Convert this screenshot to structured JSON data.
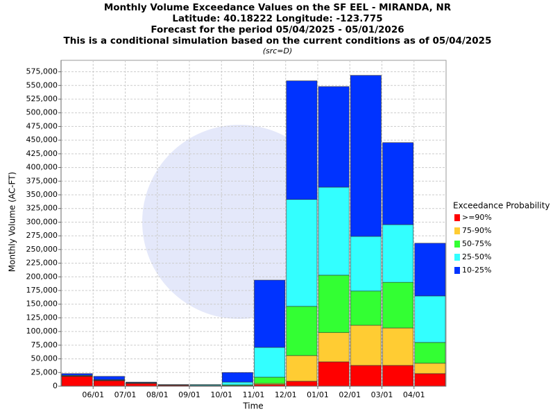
{
  "chart_data": {
    "type": "stacked_bar",
    "title": [
      "Monthly Volume Exceedance Values on the SF EEL - MIRANDA, NR",
      "Latitude: 40.18222 Longitude: -123.775",
      "Forecast for the period 05/04/2025 - 05/01/2026",
      "This is a conditional simulation based on the current conditions as of 05/04/2025"
    ],
    "subtitle": "(src=D)",
    "x_label": "Time",
    "y_label": "Monthly Volume (AC-FT)",
    "legend_title": "Exceedance Probability",
    "legend": "right",
    "grid": true,
    "categories": [
      null,
      "06/01",
      "07/01",
      "08/01",
      "09/01",
      "10/01",
      "11/01",
      "12/01",
      "01/01",
      "02/01",
      "03/01",
      "04/01"
    ],
    "series": [
      {
        "name": ">=90%",
        "color": "#ff0000",
        "values": [
          18000,
          10000,
          5000,
          1500,
          500,
          500,
          3000,
          9000,
          44500,
          38000,
          38000,
          23000
        ]
      },
      {
        "name": "75-90%",
        "color": "#ffcc33",
        "values": [
          500,
          500,
          300,
          200,
          200,
          500,
          2000,
          47000,
          53500,
          73500,
          68500,
          19000
        ]
      },
      {
        "name": "50-75%",
        "color": "#33ff33",
        "values": [
          500,
          500,
          300,
          200,
          300,
          1500,
          11500,
          90000,
          105000,
          62500,
          83500,
          38000
        ]
      },
      {
        "name": "25-50%",
        "color": "#33ffff",
        "values": [
          1000,
          1000,
          900,
          300,
          1500,
          5000,
          54500,
          195500,
          161000,
          100000,
          105500,
          85000
        ]
      },
      {
        "name": "10-25%",
        "color": "#0033ff",
        "values": [
          3000,
          6000,
          1000,
          800,
          500,
          17500,
          123000,
          217000,
          184000,
          294500,
          150000,
          96500
        ]
      }
    ],
    "ylim": [
      0,
      596000
    ],
    "yticks": [
      0,
      {
        "value": 25000,
        "label": "25,000"
      },
      {
        "value": 50000,
        "label": "50,000"
      },
      {
        "value": 75000,
        "label": "75,000"
      },
      {
        "value": 100000,
        "label": "100,000"
      },
      {
        "value": 125000,
        "label": "125,000"
      },
      {
        "value": 150000,
        "label": "150,000"
      },
      {
        "value": 175000,
        "label": "175,000"
      },
      {
        "value": 200000,
        "label": "200,000"
      },
      {
        "value": 225000,
        "label": "225,000"
      },
      {
        "value": 250000,
        "label": "250,000"
      },
      {
        "value": 275000,
        "label": "275,000"
      },
      {
        "value": 300000,
        "label": "300,000"
      },
      {
        "value": 325000,
        "label": "325,000"
      },
      {
        "value": 350000,
        "label": "350,000"
      },
      {
        "value": 375000,
        "label": "375,000"
      },
      {
        "value": 400000,
        "label": "400,000"
      },
      {
        "value": 425000,
        "label": "425,000"
      },
      {
        "value": 450000,
        "label": "450,000"
      },
      {
        "value": 475000,
        "label": "475,000"
      },
      {
        "value": 500000,
        "label": "500,000"
      },
      {
        "value": 525000,
        "label": "525,000"
      },
      {
        "value": 550000,
        "label": "550,000"
      },
      {
        "value": 575000,
        "label": "575,000"
      }
    ]
  }
}
